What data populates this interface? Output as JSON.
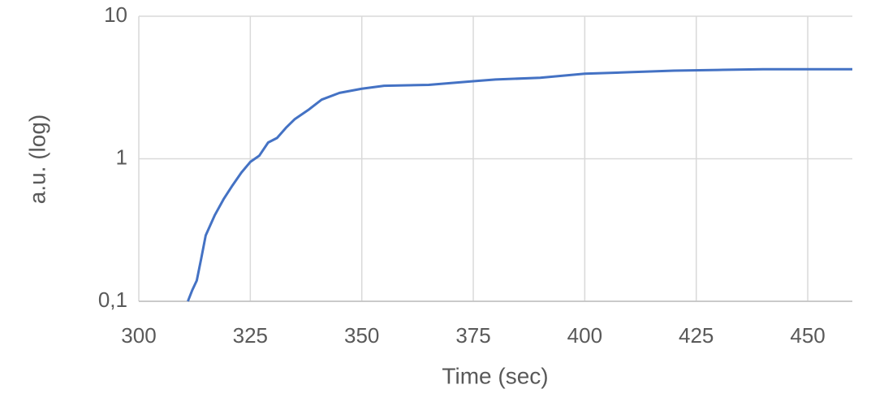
{
  "chart_data": {
    "type": "line",
    "x_label": "Time (sec)",
    "y_label": "a.u. (log)",
    "x": [
      311,
      312,
      313,
      314,
      315,
      317,
      319,
      321,
      323,
      325,
      327,
      329,
      331,
      333,
      335,
      338,
      341,
      345,
      350,
      355,
      365,
      370,
      375,
      380,
      390,
      400,
      410,
      420,
      430,
      440,
      450,
      460
    ],
    "series": [
      {
        "color": "#4472c4",
        "values": [
          0.1,
          0.12,
          0.14,
          0.2,
          0.29,
          0.4,
          0.52,
          0.65,
          0.8,
          0.95,
          1.05,
          1.3,
          1.4,
          1.65,
          1.9,
          2.2,
          2.6,
          2.9,
          3.1,
          3.25,
          3.3,
          3.4,
          3.5,
          3.6,
          3.7,
          3.95,
          4.05,
          4.15,
          4.2,
          4.25,
          4.25,
          4.25
        ]
      }
    ],
    "xlim": [
      300,
      460
    ],
    "xticks": [
      300,
      325,
      350,
      375,
      400,
      425,
      450
    ],
    "ylim": [
      0.1,
      10
    ],
    "yticks": [
      {
        "value": 0.1,
        "label": "0,1"
      },
      1,
      10
    ],
    "y_scale": "log",
    "grid": true
  }
}
